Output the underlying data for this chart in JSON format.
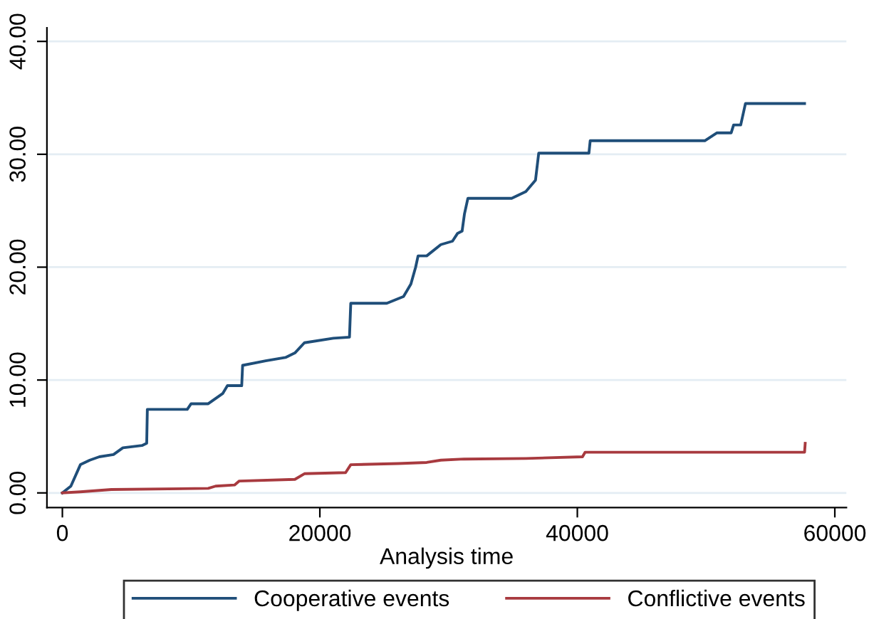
{
  "chart_data": {
    "type": "line",
    "xlabel": "Analysis time",
    "xlim": [
      -1200,
      60900
    ],
    "xticks": [
      0,
      20000,
      40000,
      60000
    ],
    "ylim": [
      -1.3,
      41.2
    ],
    "yticks": [
      {
        "value": 0,
        "label": "0.00"
      },
      {
        "value": 10,
        "label": "10.00"
      },
      {
        "value": 20,
        "label": "20.00"
      },
      {
        "value": 30,
        "label": "30.00"
      },
      {
        "value": 40,
        "label": "40.00"
      }
    ],
    "grid": "y",
    "legend": "bottom",
    "line_style": "solid",
    "marker": "none",
    "series": [
      {
        "name": "Cooperative events",
        "color": "#1f4e79",
        "x": [
          0,
          660,
          1400,
          2130,
          2870,
          3970,
          4700,
          6180,
          6550,
          6600,
          9700,
          10000,
          11330,
          12450,
          12820,
          13930,
          14000,
          15790,
          17330,
          18060,
          18800,
          21050,
          22300,
          22400,
          25200,
          26500,
          27070,
          27440,
          27630,
          28300,
          29400,
          30300,
          30700,
          31050,
          31230,
          31500,
          34900,
          36000,
          36750,
          37000,
          40900,
          41000,
          49900,
          50850,
          51950,
          52140,
          52690,
          53060,
          57650
        ],
        "values": [
          0,
          0.6,
          2.5,
          2.9,
          3.2,
          3.4,
          4.0,
          4.2,
          4.4,
          7.4,
          7.4,
          7.9,
          7.9,
          8.8,
          9.5,
          9.5,
          11.3,
          11.7,
          12.0,
          12.4,
          13.3,
          13.7,
          13.8,
          16.8,
          16.8,
          17.4,
          18.5,
          20.0,
          21.0,
          21.0,
          22.0,
          22.3,
          23.0,
          23.2,
          24.7,
          26.1,
          26.1,
          26.7,
          27.7,
          30.1,
          30.1,
          31.2,
          31.2,
          31.9,
          31.9,
          32.6,
          32.6,
          34.5,
          34.5
        ]
      },
      {
        "name": "Conflictive events",
        "color": "#a83a3f",
        "x": [
          0,
          1400,
          3800,
          11330,
          11900,
          13370,
          13740,
          18060,
          18800,
          22000,
          22400,
          26100,
          28300,
          29400,
          31200,
          36000,
          40400,
          40600,
          57650,
          57700
        ],
        "values": [
          0,
          0.1,
          0.3,
          0.4,
          0.6,
          0.7,
          1.05,
          1.2,
          1.7,
          1.8,
          2.5,
          2.6,
          2.7,
          2.9,
          3.0,
          3.05,
          3.2,
          3.6,
          3.6,
          4.4
        ]
      }
    ]
  }
}
